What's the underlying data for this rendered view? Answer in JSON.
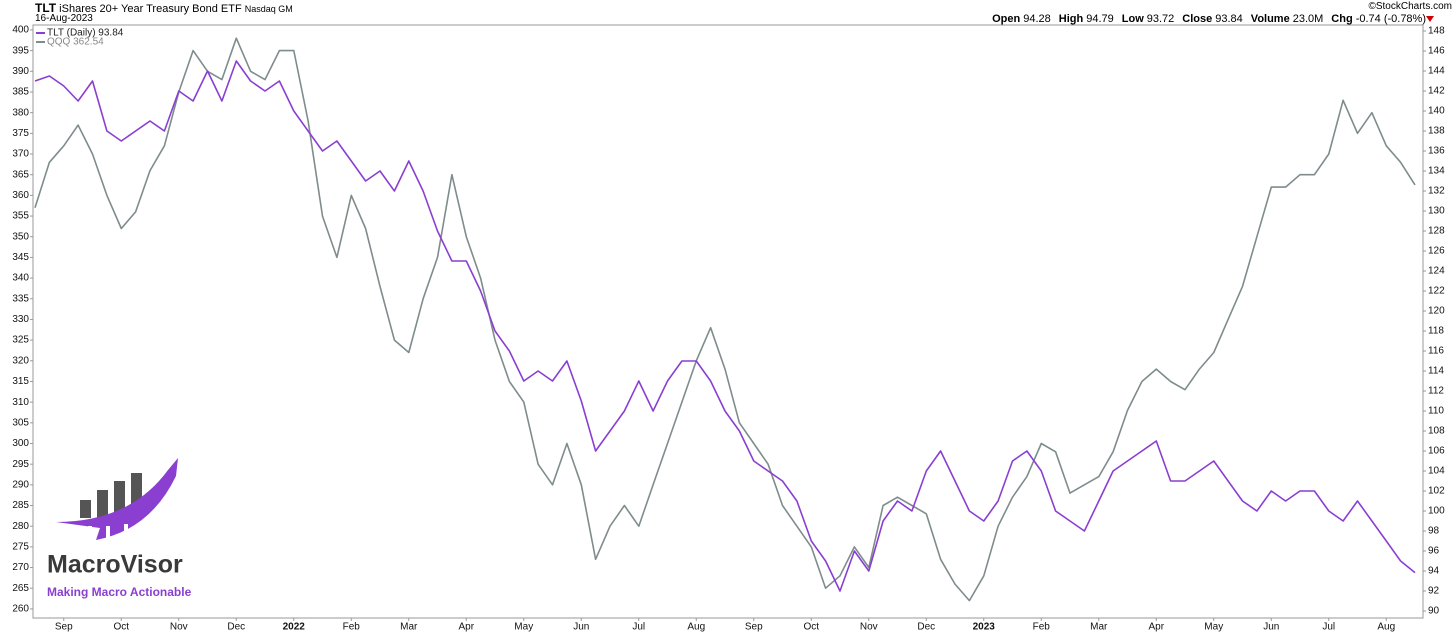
{
  "header": {
    "symbol": "TLT",
    "name": "iShares 20+ Year Treasury Bond ETF",
    "exchange": "Nasdaq GM",
    "date": "16-Aug-2023",
    "credit": "©StockCharts.com",
    "quote": [
      {
        "label": "Open",
        "value": "94.28"
      },
      {
        "label": "High",
        "value": "94.79"
      },
      {
        "label": "Low",
        "value": "93.72"
      },
      {
        "label": "Close",
        "value": "93.84"
      },
      {
        "label": "Volume",
        "value": "23.0M"
      },
      {
        "label": "Chg",
        "value": "-0.74 (-0.78%)"
      }
    ]
  },
  "logo": {
    "brand": "MacroVisor",
    "tagline": "Making Macro Actionable"
  },
  "chart_data": {
    "type": "line",
    "categories": [
      null,
      null,
      "Sep",
      null,
      null,
      null,
      "Oct",
      null,
      null,
      null,
      "Nov",
      null,
      null,
      null,
      "Dec",
      null,
      null,
      null,
      "2022",
      null,
      null,
      null,
      "Feb",
      null,
      null,
      null,
      "Mar",
      null,
      null,
      null,
      "Apr",
      null,
      null,
      null,
      "May",
      null,
      null,
      null,
      "Jun",
      null,
      null,
      null,
      "Jul",
      null,
      null,
      null,
      "Aug",
      null,
      null,
      null,
      "Sep",
      null,
      null,
      null,
      "Oct",
      null,
      null,
      null,
      "Nov",
      null,
      null,
      null,
      "Dec",
      null,
      null,
      null,
      "2023",
      null,
      null,
      null,
      "Feb",
      null,
      null,
      null,
      "Mar",
      null,
      null,
      null,
      "Apr",
      null,
      null,
      null,
      "May",
      null,
      null,
      null,
      "Jun",
      null,
      null,
      null,
      "Jul",
      null,
      null,
      null,
      "Aug",
      null,
      null
    ],
    "series": [
      {
        "name": "TLT (Daily) 93.84",
        "color": "#8a3fd1",
        "axis": "y2",
        "values": [
          143,
          143.5,
          142.5,
          141,
          143,
          138,
          137,
          138,
          139,
          138,
          142,
          141,
          144,
          141,
          145,
          143,
          142,
          143,
          140,
          138,
          136,
          137,
          135,
          133,
          134,
          132,
          135,
          132,
          128,
          125,
          125,
          122,
          118,
          116,
          113,
          114,
          113,
          115,
          111,
          106,
          108,
          110,
          113,
          110,
          113,
          115,
          115,
          113,
          110,
          108,
          105,
          104,
          103,
          101,
          97,
          95,
          92,
          96,
          94,
          99,
          101,
          100,
          104,
          106,
          103,
          100,
          99,
          101,
          105,
          106,
          104,
          100,
          99,
          98,
          101,
          104,
          105,
          106,
          107,
          103,
          103,
          104,
          105,
          103,
          101,
          100,
          102,
          101,
          102,
          102,
          100,
          99,
          101,
          99,
          97,
          95,
          93.84
        ]
      },
      {
        "name": "QQQ 362.54",
        "color": "#7f8c8d",
        "values": [
          357,
          368,
          372,
          377,
          370,
          360,
          352,
          356,
          366,
          372,
          385,
          395,
          390,
          388,
          398,
          390,
          388,
          395,
          395,
          378,
          355,
          345,
          360,
          352,
          338,
          325,
          322,
          335,
          345,
          365,
          350,
          340,
          325,
          315,
          310,
          295,
          290,
          300,
          290,
          272,
          280,
          285,
          280,
          290,
          300,
          310,
          320,
          328,
          318,
          305,
          300,
          295,
          285,
          280,
          275,
          265,
          268,
          275,
          270,
          285,
          287,
          285,
          283,
          272,
          266,
          262,
          268,
          280,
          287,
          292,
          300,
          298,
          288,
          290,
          292,
          298,
          308,
          315,
          318,
          315,
          313,
          318,
          322,
          330,
          338,
          350,
          362,
          362,
          365,
          365,
          370,
          383,
          375,
          380,
          372,
          368,
          362.54
        ]
      }
    ],
    "ylim": [
      257.8,
      401.2
    ],
    "yticks": [
      260,
      265,
      270,
      275,
      280,
      285,
      290,
      295,
      300,
      305,
      310,
      315,
      320,
      325,
      330,
      335,
      340,
      345,
      350,
      355,
      360,
      365,
      370,
      375,
      380,
      385,
      390,
      395,
      400
    ],
    "y2lim": [
      89.3,
      148.6
    ],
    "y2ticks": [
      90,
      92,
      94,
      96,
      98,
      100,
      102,
      104,
      106,
      108,
      110,
      112,
      114,
      116,
      118,
      120,
      122,
      124,
      126,
      128,
      130,
      132,
      134,
      136,
      138,
      140,
      142,
      144,
      146,
      148
    ],
    "grid": false
  }
}
